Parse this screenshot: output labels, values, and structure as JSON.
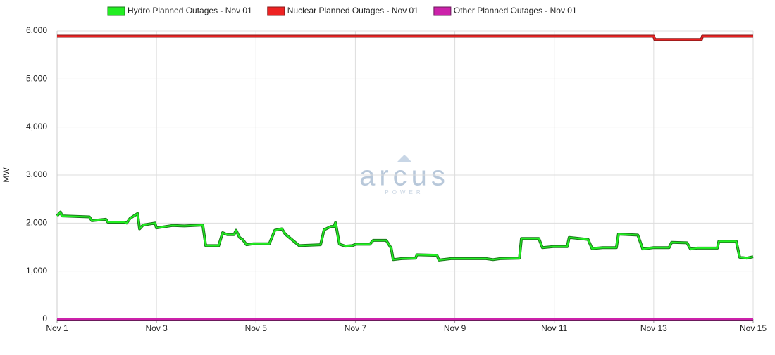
{
  "chart_data": {
    "type": "line",
    "y_label": "MW",
    "watermark": "arcus",
    "watermark_sub": "POWER",
    "xlim": [
      0,
      14
    ],
    "xticks": [
      {
        "value": 0,
        "label": "Nov 1"
      },
      {
        "value": 2,
        "label": "Nov 3"
      },
      {
        "value": 4,
        "label": "Nov 5"
      },
      {
        "value": 6,
        "label": "Nov 7"
      },
      {
        "value": 8,
        "label": "Nov 9"
      },
      {
        "value": 10,
        "label": "Nov 11"
      },
      {
        "value": 12,
        "label": "Nov 13"
      },
      {
        "value": 14,
        "label": "Nov 15"
      }
    ],
    "ylim": [
      0,
      6000
    ],
    "yticks": [
      0,
      {
        "value": 1000,
        "label": "1,000"
      },
      {
        "value": 2000,
        "label": "2,000"
      },
      {
        "value": 3000,
        "label": "3,000"
      },
      {
        "value": 4000,
        "label": "4,000"
      },
      {
        "value": 5000,
        "label": "5,000"
      },
      {
        "value": 6000,
        "label": "6,000"
      }
    ],
    "grid": true,
    "series": [
      {
        "name": "Hydro Planned Outages - Nov 01",
        "color": "#22ee22",
        "edge": "#1a7a1a",
        "x": [
          0,
          0.07,
          0.1,
          0.65,
          0.7,
          0.98,
          1.02,
          1.35,
          1.4,
          1.47,
          1.62,
          1.66,
          1.73,
          1.97,
          2.0,
          2.32,
          2.56,
          2.93,
          2.99,
          3.25,
          3.33,
          3.42,
          3.56,
          3.6,
          3.67,
          3.74,
          3.81,
          3.95,
          4.27,
          4.38,
          4.52,
          4.59,
          4.73,
          4.87,
          5.3,
          5.37,
          5.51,
          5.57,
          5.6,
          5.68,
          5.8,
          5.94,
          6.01,
          6.29,
          6.36,
          6.62,
          6.72,
          6.76,
          6.93,
          7.21,
          7.24,
          7.64,
          7.68,
          7.92,
          8.63,
          8.77,
          8.91,
          9.3,
          9.34,
          9.69,
          9.76,
          9.98,
          10.26,
          10.3,
          10.68,
          10.76,
          10.97,
          11.25,
          11.29,
          11.68,
          11.78,
          12.0,
          12.31,
          12.36,
          12.67,
          12.74,
          12.88,
          13.28,
          13.31,
          13.66,
          13.73,
          13.87,
          14.0
        ],
        "values": [
          2150,
          2230,
          2150,
          2130,
          2050,
          2080,
          2020,
          2020,
          2000,
          2100,
          2200,
          1880,
          1960,
          2000,
          1900,
          1950,
          1940,
          1960,
          1530,
          1530,
          1800,
          1760,
          1760,
          1850,
          1700,
          1650,
          1550,
          1570,
          1570,
          1850,
          1880,
          1770,
          1650,
          1530,
          1550,
          1860,
          1930,
          1930,
          2010,
          1560,
          1520,
          1530,
          1560,
          1560,
          1640,
          1640,
          1480,
          1240,
          1260,
          1270,
          1340,
          1330,
          1230,
          1260,
          1260,
          1240,
          1260,
          1270,
          1680,
          1680,
          1490,
          1510,
          1510,
          1700,
          1660,
          1470,
          1490,
          1490,
          1770,
          1750,
          1460,
          1490,
          1490,
          1600,
          1590,
          1460,
          1480,
          1480,
          1620,
          1620,
          1290,
          1270,
          1300
        ]
      },
      {
        "name": "Nuclear Planned Outages - Nov 01",
        "color": "#ee2222",
        "edge": "#8a1a1a",
        "x": [
          0,
          12.0,
          12.02,
          12.96,
          12.98,
          14.0
        ],
        "values": [
          5890,
          5890,
          5820,
          5820,
          5890,
          5890
        ]
      },
      {
        "name": "Other Planned Outages - Nov 01",
        "color": "#cc22aa",
        "edge": "#6a1a5a",
        "x": [
          0,
          14.0
        ],
        "values": [
          0,
          0
        ]
      }
    ]
  }
}
